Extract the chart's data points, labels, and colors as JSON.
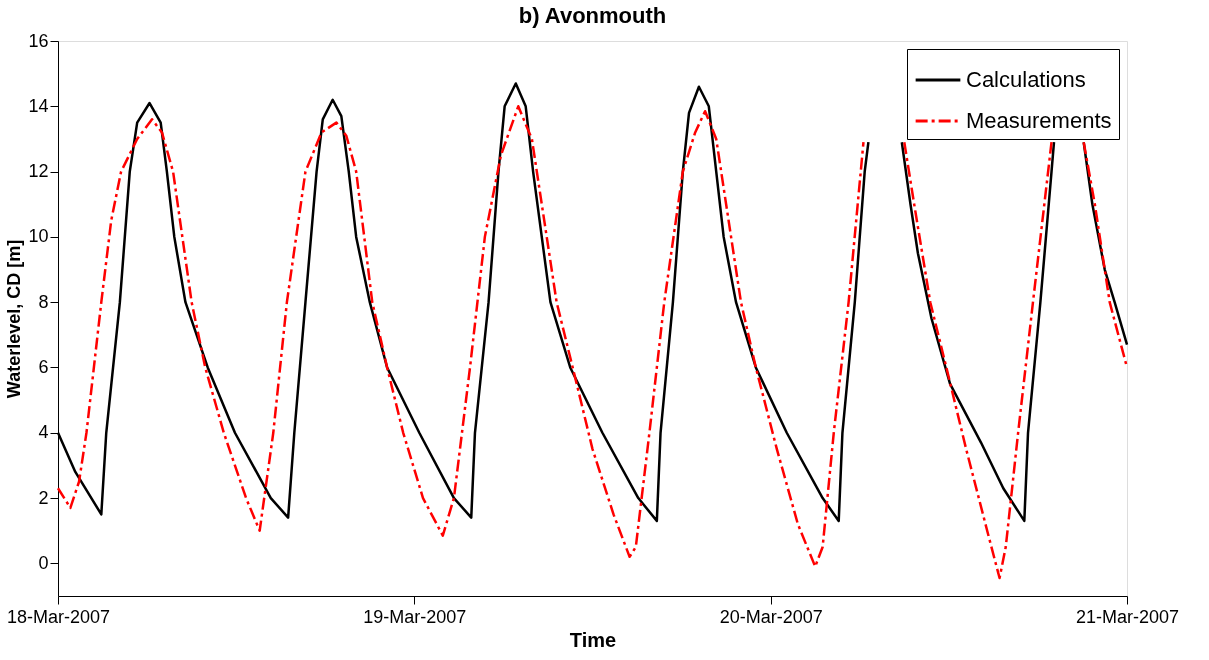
{
  "chart_data": {
    "type": "line",
    "title": "b) Avonmouth",
    "xlabel": "Time",
    "ylabel": "Waterlevel, CD [m]",
    "xlim": [
      "2007-03-18",
      "2007-03-21"
    ],
    "xticks": [
      {
        "value": "2007-03-18",
        "label": "18-Mar-2007"
      },
      {
        "value": "2007-03-19",
        "label": "19-Mar-2007"
      },
      {
        "value": "2007-03-20",
        "label": "20-Mar-2007"
      },
      {
        "value": "2007-03-21",
        "label": "21-Mar-2007"
      }
    ],
    "ylim": [
      -1,
      16
    ],
    "yticks": [
      0,
      2,
      4,
      6,
      8,
      10,
      12,
      14,
      16
    ],
    "grid": false,
    "legend": "top right",
    "series": [
      {
        "name": "Calculations",
        "color": "#000000",
        "line_style": "solid",
        "x": [
          "2007-03-18T00:00",
          "2007-03-18T01:10",
          "2007-03-18T02:55",
          "2007-03-18T03:15",
          "2007-03-18T04:10",
          "2007-03-18T04:50",
          "2007-03-18T05:20",
          "2007-03-18T06:10",
          "2007-03-18T06:55",
          "2007-03-18T07:20",
          "2007-03-18T07:50",
          "2007-03-18T08:35",
          "2007-03-18T10:05",
          "2007-03-18T11:55",
          "2007-03-18T14:20",
          "2007-03-18T15:30",
          "2007-03-18T15:55",
          "2007-03-18T16:40",
          "2007-03-18T17:25",
          "2007-03-18T17:50",
          "2007-03-18T18:30",
          "2007-03-18T19:05",
          "2007-03-18T19:35",
          "2007-03-18T20:05",
          "2007-03-18T21:00",
          "2007-03-18T22:10",
          "2007-03-19T00:20",
          "2007-03-19T02:40",
          "2007-03-19T03:50",
          "2007-03-19T04:05",
          "2007-03-19T05:00",
          "2007-03-19T05:40",
          "2007-03-19T06:05",
          "2007-03-19T06:50",
          "2007-03-19T07:30",
          "2007-03-19T08:00",
          "2007-03-19T08:35",
          "2007-03-19T09:10",
          "2007-03-19T10:30",
          "2007-03-19T12:40",
          "2007-03-19T15:05",
          "2007-03-19T16:20",
          "2007-03-19T16:35",
          "2007-03-19T17:25",
          "2007-03-19T18:05",
          "2007-03-19T18:30",
          "2007-03-19T19:10",
          "2007-03-19T19:50",
          "2007-03-19T20:20",
          "2007-03-19T20:50",
          "2007-03-19T21:40",
          "2007-03-19T23:00",
          "2007-03-20T01:05",
          "2007-03-20T03:30",
          "2007-03-20T04:35",
          "2007-03-20T04:50",
          "2007-03-20T05:40",
          "2007-03-20T06:20",
          "2007-03-20T06:35",
          "2007-03-20T07:40",
          "2007-03-20T08:50",
          "2007-03-20T09:25",
          "2007-03-20T09:55",
          "2007-03-20T10:50",
          "2007-03-20T12:05",
          "2007-03-20T14:10",
          "2007-03-20T15:40",
          "2007-03-20T17:05",
          "2007-03-20T17:20",
          "2007-03-20T18:10",
          "2007-03-20T18:55",
          "2007-03-20T19:05",
          "2007-03-20T20:05",
          "2007-03-20T21:05",
          "2007-03-20T21:40",
          "2007-03-20T22:30",
          "2007-03-20T23:10",
          "2007-03-21T00:00"
        ],
        "values": [
          4.0,
          2.8,
          1.5,
          4.0,
          8,
          12,
          13.5,
          14.1,
          13.5,
          12,
          10,
          8,
          6,
          4,
          2,
          1.4,
          4,
          8,
          12,
          13.6,
          14.2,
          13.7,
          12,
          10,
          8,
          6,
          4,
          2,
          1.4,
          4,
          8,
          12,
          14.0,
          14.7,
          14.0,
          12,
          10,
          8,
          6,
          4,
          2,
          1.3,
          4,
          8,
          12,
          13.8,
          14.6,
          14.0,
          12,
          10,
          8,
          6,
          4,
          2,
          1.3,
          4,
          8,
          12,
          12.9,
          null,
          12.9,
          11,
          9.5,
          7.5,
          5.5,
          3.7,
          2.3,
          1.3,
          4,
          8,
          12,
          12.9,
          null,
          12.9,
          11,
          9,
          8,
          6.7
        ]
      },
      {
        "name": "Measurements",
        "color": "#ff0000",
        "line_style": "dashdot",
        "x": [
          "2007-03-18T00:00",
          "2007-03-18T00:50",
          "2007-03-18T01:25",
          "2007-03-18T01:55",
          "2007-03-18T02:55",
          "2007-03-18T03:35",
          "2007-03-18T04:15",
          "2007-03-18T05:20",
          "2007-03-18T06:20",
          "2007-03-18T07:00",
          "2007-03-18T07:45",
          "2007-03-18T09:00",
          "2007-03-18T09:55",
          "2007-03-18T11:10",
          "2007-03-18T12:40",
          "2007-03-18T13:35",
          "2007-03-18T14:30",
          "2007-03-18T15:25",
          "2007-03-18T16:40",
          "2007-03-18T17:45",
          "2007-03-18T18:45",
          "2007-03-18T19:25",
          "2007-03-18T20:05",
          "2007-03-18T21:10",
          "2007-03-18T22:10",
          "2007-03-18T23:15",
          "2007-03-19T00:35",
          "2007-03-19T01:55",
          "2007-03-19T02:40",
          "2007-03-19T03:45",
          "2007-03-19T04:45",
          "2007-03-19T05:50",
          "2007-03-19T07:00",
          "2007-03-19T07:55",
          "2007-03-19T08:35",
          "2007-03-19T09:35",
          "2007-03-19T10:40",
          "2007-03-19T12:00",
          "2007-03-19T13:25",
          "2007-03-19T14:30",
          "2007-03-19T14:55",
          "2007-03-19T15:50",
          "2007-03-19T16:50",
          "2007-03-19T18:05",
          "2007-03-19T18:55",
          "2007-03-19T19:35",
          "2007-03-19T20:20",
          "2007-03-19T21:00",
          "2007-03-19T22:00",
          "2007-03-19T23:00",
          "2007-03-20T00:25",
          "2007-03-20T01:50",
          "2007-03-20T03:00",
          "2007-03-20T03:30",
          "2007-03-20T04:15",
          "2007-03-20T05:15",
          "2007-03-20T06:15",
          "2007-03-20T07:35",
          "2007-03-20T09:00",
          "2007-03-20T09:40",
          "2007-03-20T10:45",
          "2007-03-20T11:50",
          "2007-03-20T13:10",
          "2007-03-20T14:35",
          "2007-03-20T15:25",
          "2007-03-20T15:50",
          "2007-03-20T16:40",
          "2007-03-20T17:40",
          "2007-03-20T18:55",
          "2007-03-20T20:00",
          "2007-03-20T21:05",
          "2007-03-20T21:50",
          "2007-03-20T22:50",
          "2007-03-21T00:00"
        ],
        "values": [
          2.3,
          1.7,
          2.5,
          4,
          8,
          10.5,
          12,
          13.0,
          13.6,
          13.2,
          12,
          8,
          6,
          4,
          2,
          1.0,
          4,
          8,
          12,
          13.2,
          13.5,
          13.1,
          12,
          8,
          6,
          4,
          2,
          0.85,
          2,
          6,
          10,
          12.5,
          14.0,
          13.0,
          11,
          8,
          6,
          3.5,
          1.5,
          0.2,
          0.5,
          4,
          8,
          12,
          13.2,
          13.85,
          13.0,
          11,
          8,
          6,
          3.5,
          1.2,
          -0.1,
          0.5,
          4,
          8,
          12.9,
          null,
          12.9,
          11,
          8,
          6,
          3.5,
          1.0,
          -0.45,
          0.5,
          4,
          8,
          12.9,
          null,
          12.9,
          11,
          8,
          6.0
        ]
      }
    ]
  }
}
